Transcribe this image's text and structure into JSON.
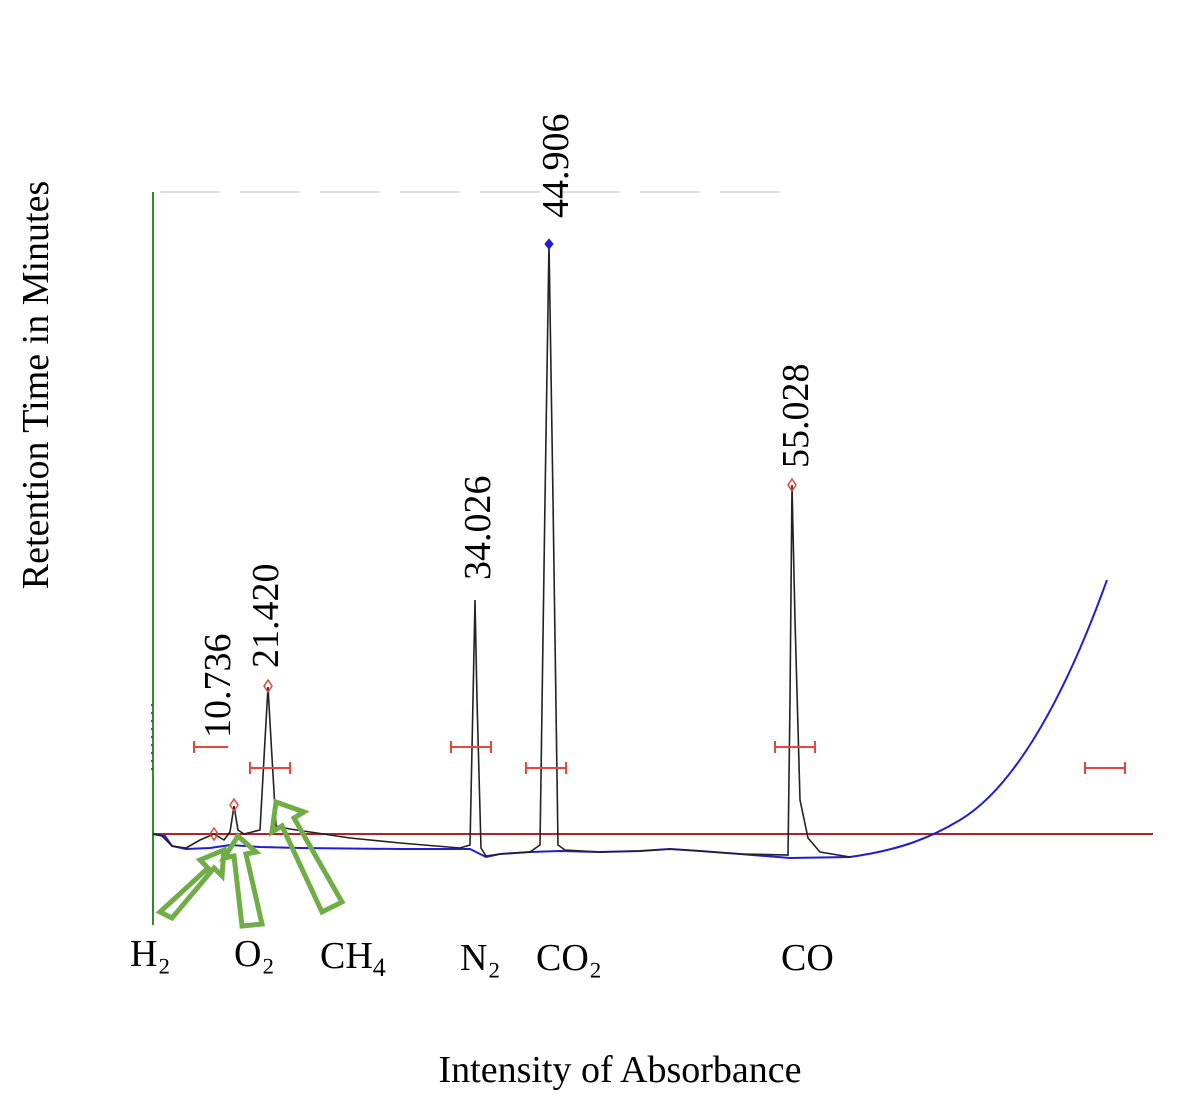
{
  "chart_data": {
    "type": "line",
    "xlabel": "Intensity of Absorbance",
    "ylabel": "Retention Time in Minutes",
    "colors": {
      "signal": "#222222",
      "baseline": "#1f1fd0",
      "reference": "#b22222",
      "y_axis": "#2e8b2e",
      "integration_markers": "#e8463c",
      "arrows": "#70ad47",
      "peak_marker": "#e8463c"
    },
    "peaks": [
      {
        "retention_time": 10.736,
        "label": "10.736",
        "rel_height": 0.04
      },
      {
        "retention_time": 21.42,
        "label": "21.420",
        "rel_height": 0.27
      },
      {
        "retention_time": 34.026,
        "label": "34.026",
        "rel_height": 0.41
      },
      {
        "retention_time": 44.906,
        "label": "44.906",
        "rel_height": 1.0
      },
      {
        "retention_time": 55.028,
        "label": "55.028",
        "rel_height": 0.59
      }
    ],
    "small_peak": {
      "rel_height": 0.05
    },
    "compounds": [
      {
        "id": "h2",
        "label": "H₂"
      },
      {
        "id": "o2",
        "label": "O₂"
      },
      {
        "id": "ch4",
        "label": "CH",
        "subscript": "4"
      },
      {
        "id": "n2",
        "label": "N₂"
      },
      {
        "id": "co2",
        "label": "CO₂"
      },
      {
        "id": "co",
        "label": "CO"
      }
    ],
    "arrows_pointing_to": [
      "10.736",
      "O₂ peak",
      "21.420"
    ],
    "grid": false,
    "legend": "none"
  }
}
